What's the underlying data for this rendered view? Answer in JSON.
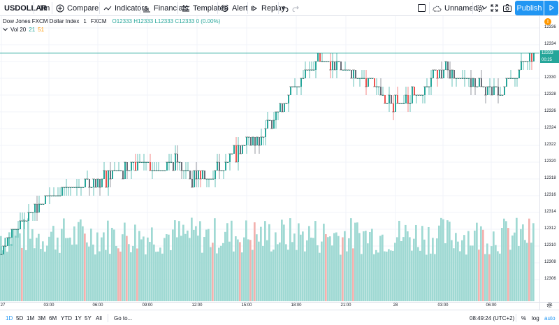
{
  "toolbar": {
    "symbol": "USDOLLAR",
    "interval": "1m",
    "compare_label": "Compare",
    "indicators_label": "Indicators",
    "financials_label": "Financials",
    "templates_label": "Templates",
    "alert_label": "Alert",
    "replay_label": "Replay",
    "layout_name": "Unnamed",
    "publish_label": "Publish"
  },
  "legend": {
    "title": "Dow Jones FXCM Dollar Index",
    "interval": "1",
    "source": "FXCM",
    "ohlc": "O12333 H12333 L12333 C12333 0 (0.00%)",
    "vol_label": "Vol 20",
    "vol_value1": "21",
    "vol_value2": "51"
  },
  "price_axis": {
    "labels": [
      "12336",
      "12334",
      "12332",
      "12330",
      "12328",
      "12326",
      "12324",
      "12322",
      "12320",
      "12318",
      "12316",
      "12314",
      "12312",
      "12310",
      "12308",
      "12306"
    ],
    "last_price": "12333",
    "countdown": "00:25",
    "alert_badge": "!"
  },
  "time_axis": {
    "labels": [
      "27",
      "03:00",
      "06:00",
      "09:00",
      "12:00",
      "15:00",
      "18:00",
      "21:00",
      "28",
      "03:00",
      "06:00"
    ]
  },
  "bottom_bar": {
    "ranges": [
      "1D",
      "5D",
      "1M",
      "3M",
      "6M",
      "YTD",
      "1Y",
      "5Y",
      "All"
    ],
    "active_range": "1D",
    "goto_label": "Go to...",
    "clock": "08:49:24 (UTC+2)",
    "percent_label": "%",
    "log_label": "log",
    "auto_label": "auto"
  },
  "colors": {
    "up": "#26a69a",
    "down": "#ef5350",
    "volume": "#9fd9d3",
    "accent": "#2196f3",
    "grid": "#f0f3fa"
  },
  "chart_data": {
    "type": "candlestick",
    "symbol": "USDOLLAR",
    "ylim": [
      12305,
      12337
    ],
    "last_price": 12333,
    "price_path": [
      {
        "t": "27 00:00",
        "price": 12309
      },
      {
        "t": "27 01:30",
        "price": 12313
      },
      {
        "t": "27 03:00",
        "price": 12314
      },
      {
        "t": "27 04:00",
        "price": 12316
      },
      {
        "t": "27 05:00",
        "price": 12317
      },
      {
        "t": "27 06:00",
        "price": 12318
      },
      {
        "t": "27 07:30",
        "price": 12318
      },
      {
        "t": "27 08:30",
        "price": 12319
      },
      {
        "t": "27 09:00",
        "price": 12320
      },
      {
        "t": "27 10:00",
        "price": 12319
      },
      {
        "t": "27 11:00",
        "price": 12320
      },
      {
        "t": "27 12:00",
        "price": 12318
      },
      {
        "t": "27 13:30",
        "price": 12318
      },
      {
        "t": "27 14:30",
        "price": 12320
      },
      {
        "t": "27 15:00",
        "price": 12322
      },
      {
        "t": "27 16:00",
        "price": 12323
      },
      {
        "t": "27 17:00",
        "price": 12326
      },
      {
        "t": "27 18:00",
        "price": 12329
      },
      {
        "t": "27 19:00",
        "price": 12332
      },
      {
        "t": "27 20:00",
        "price": 12332
      },
      {
        "t": "27 21:00",
        "price": 12331
      },
      {
        "t": "27 22:00",
        "price": 12330
      },
      {
        "t": "27 23:00",
        "price": 12328
      },
      {
        "t": "28 00:00",
        "price": 12327
      },
      {
        "t": "28 01:30",
        "price": 12328
      },
      {
        "t": "28 03:00",
        "price": 12330
      },
      {
        "t": "28 04:00",
        "price": 12331
      },
      {
        "t": "28 05:00",
        "price": 12330
      },
      {
        "t": "28 06:00",
        "price": 12329
      },
      {
        "t": "28 07:30",
        "price": 12328
      },
      {
        "t": "28 08:30",
        "price": 12331
      },
      {
        "t": "28 08:49",
        "price": 12333
      }
    ],
    "volume_level": "high"
  }
}
